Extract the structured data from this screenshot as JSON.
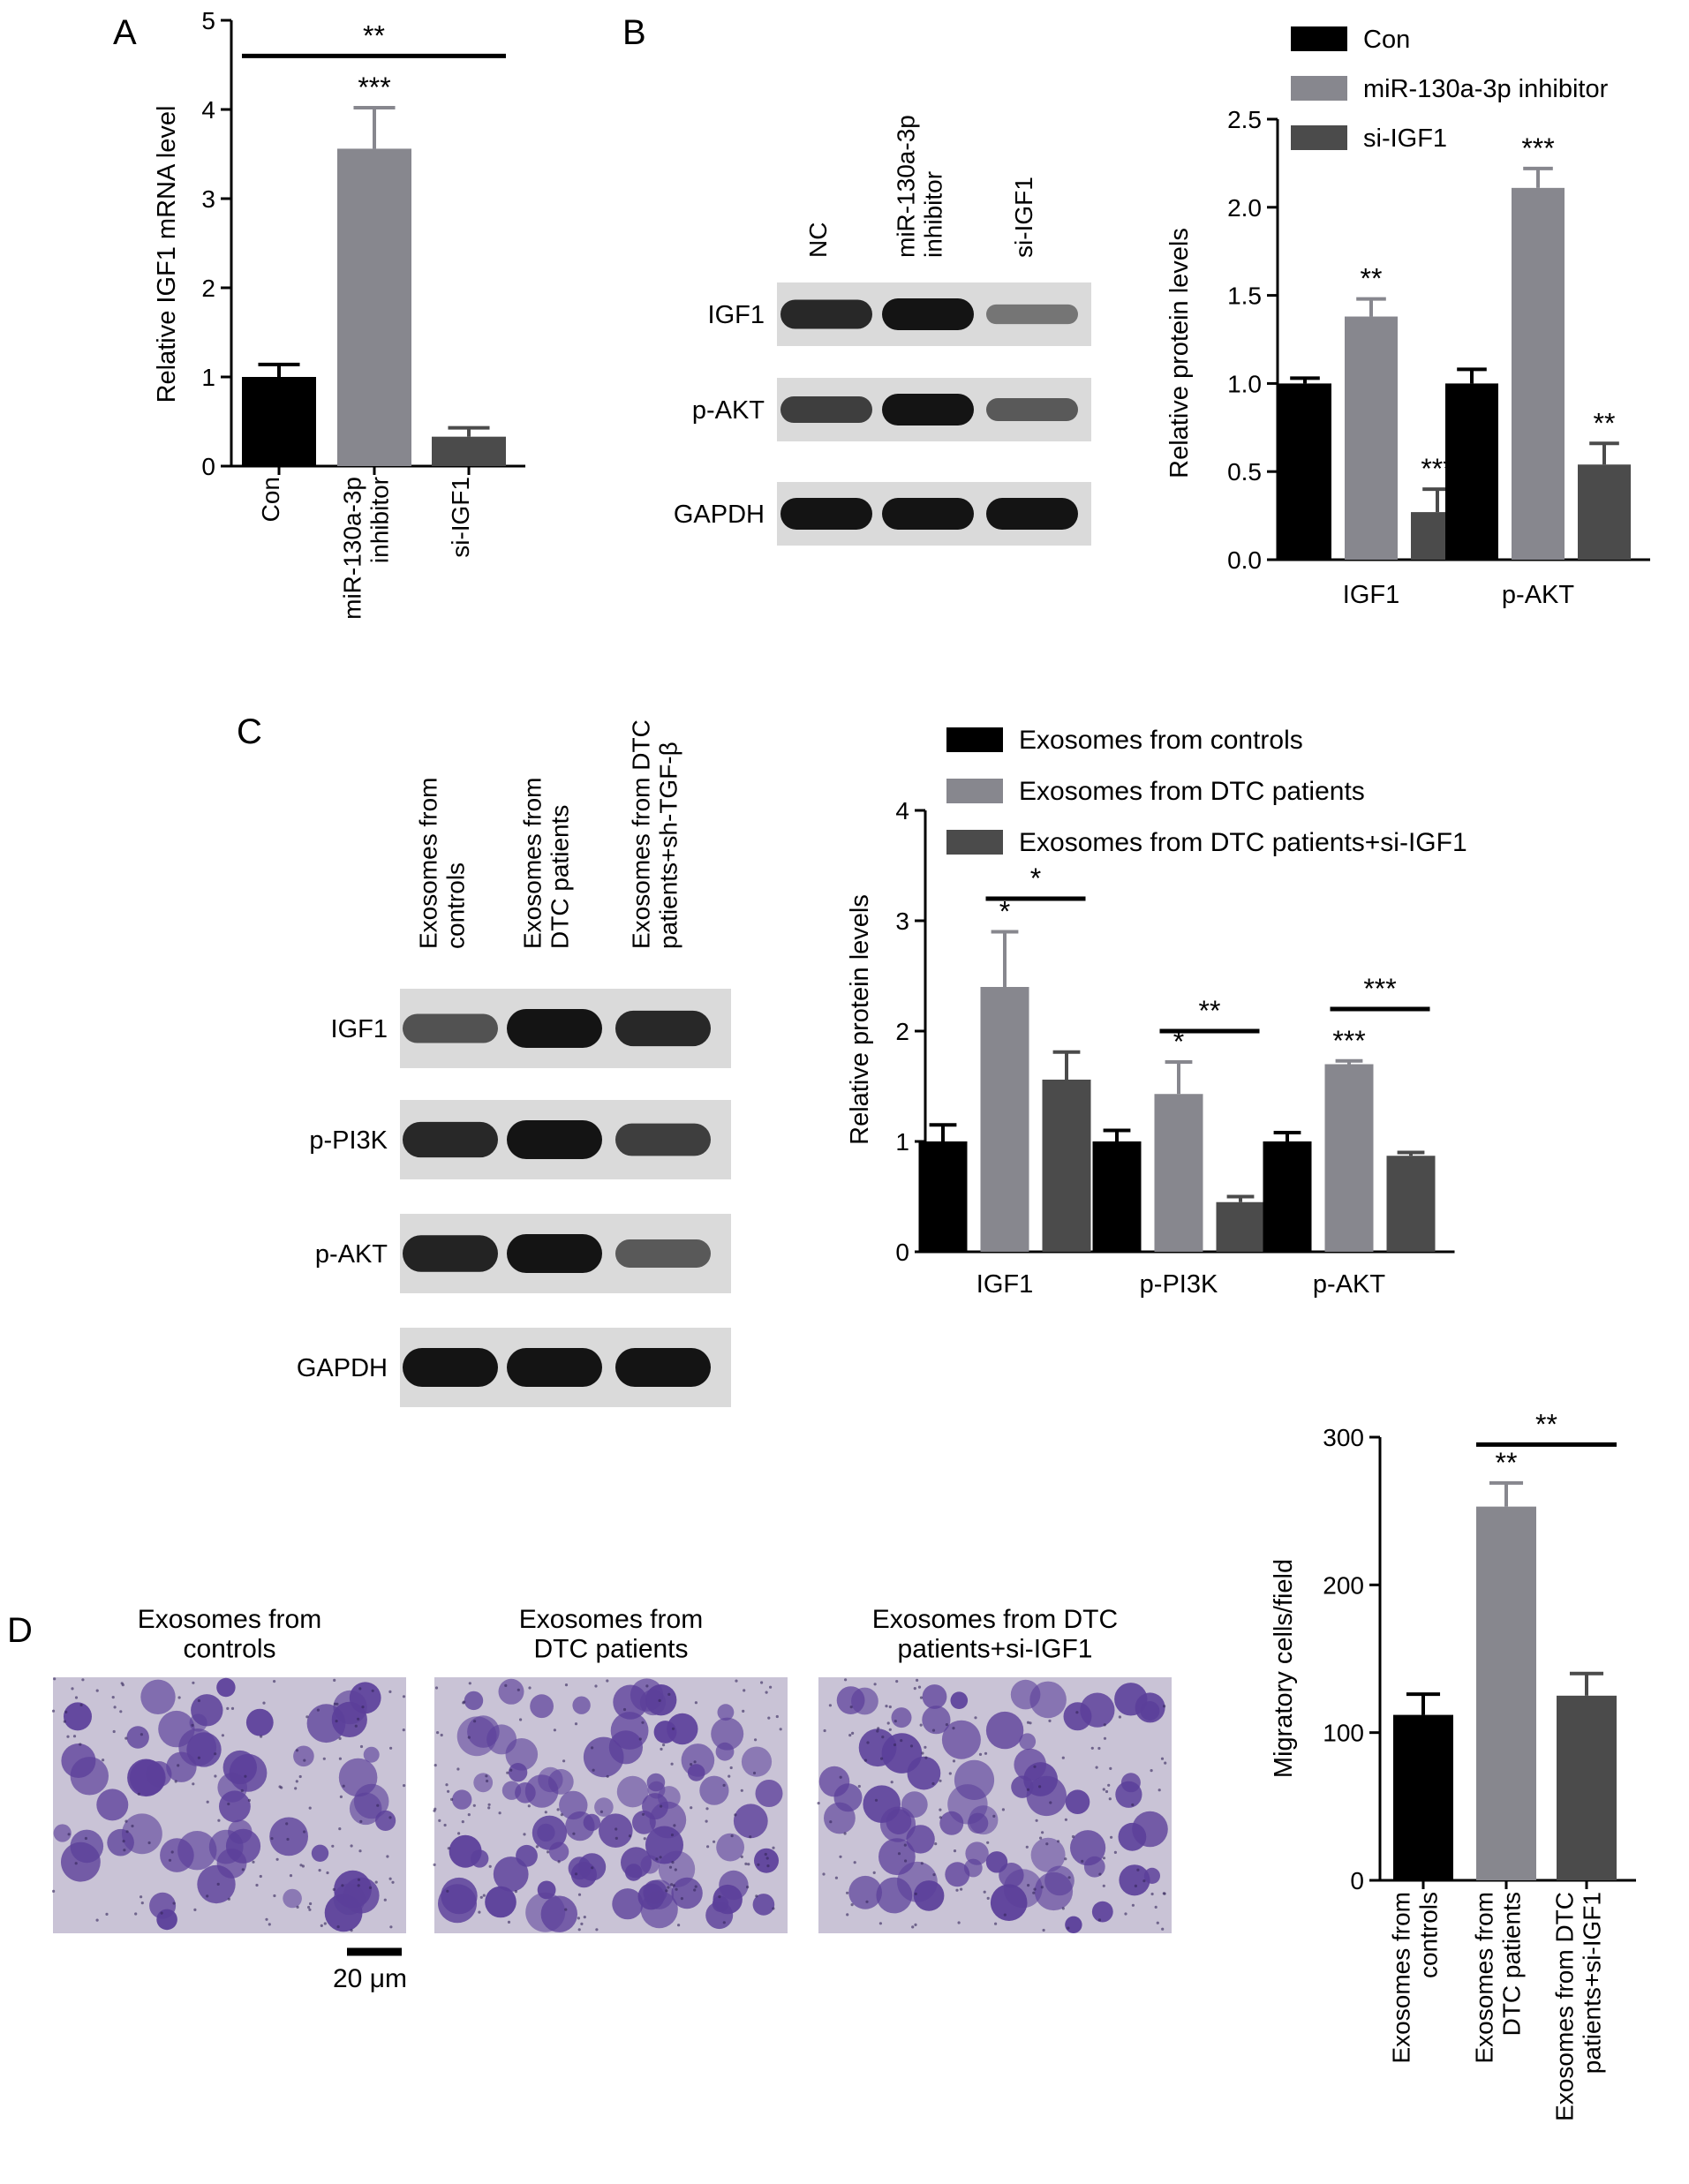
{
  "panel_labels": {
    "a": "A",
    "b": "B",
    "c": "C",
    "d": "D"
  },
  "colors": {
    "black": "#000000",
    "light_gray": "#87878e",
    "dark_gray": "#4b4b4b",
    "blot_bg": "#dadada",
    "band": "#141414",
    "stain": "#5b3f9a",
    "stain_bg": "#c9c3d6"
  },
  "blots": {
    "b": {
      "lanes": [
        "NC",
        "miR-130a-3p\ninhibitor",
        "si-IGF1"
      ],
      "rows": [
        {
          "label": "IGF1",
          "intensity": [
            0.85,
            1.0,
            0.3
          ]
        },
        {
          "label": "p-AKT",
          "intensity": [
            0.7,
            1.0,
            0.5
          ]
        },
        {
          "label": "GAPDH",
          "intensity": [
            1.0,
            1.0,
            1.0
          ]
        }
      ]
    },
    "c": {
      "lanes": [
        "Exosomes from\ncontrols",
        "Exosomes from\nDTC patients",
        "Exosomes from DTC\npatients+sh-TGF-β"
      ],
      "rows": [
        {
          "label": "IGF1",
          "intensity": [
            0.55,
            1.0,
            0.85
          ]
        },
        {
          "label": "p-PI3K",
          "intensity": [
            0.85,
            1.0,
            0.7
          ]
        },
        {
          "label": "p-AKT",
          "intensity": [
            0.9,
            1.0,
            0.5
          ]
        },
        {
          "label": "GAPDH",
          "intensity": [
            1.0,
            1.0,
            1.0
          ]
        }
      ]
    }
  },
  "micrographs": {
    "titles": [
      "Exosomes from\ncontrols",
      "Exosomes from\nDTC patients",
      "Exosomes from DTC\npatients+si-IGF1"
    ],
    "density": [
      0.45,
      0.85,
      0.6
    ],
    "scale_bar": "20 μm"
  },
  "chart_data": [
    {
      "id": "A",
      "type": "bar",
      "ylabel": "Relative IGF1 mRNA level",
      "ylim": [
        0,
        5
      ],
      "yticks": [
        "0",
        "1",
        "2",
        "3",
        "4",
        "5"
      ],
      "categories": [
        "Con",
        "miR-130a-3p\ninhibitor",
        "si-IGF1"
      ],
      "values": [
        1.0,
        3.56,
        0.33
      ],
      "errors": [
        0.14,
        0.46,
        0.1
      ],
      "annotations": [
        "",
        "***",
        ""
      ],
      "brackets": [
        {
          "from": 0,
          "to": 2,
          "label": "**",
          "y": 4.6
        }
      ]
    },
    {
      "id": "B",
      "type": "bar",
      "ylabel": "Relative protein levels",
      "ylim": [
        0,
        2.5
      ],
      "yticks": [
        "0.0",
        "0.5",
        "1.0",
        "1.5",
        "2.0",
        "2.5"
      ],
      "categories": [
        "IGF1",
        "p-AKT"
      ],
      "legend": {
        "position": "top",
        "entries": [
          "Con",
          "miR-130a-3p inhibitor",
          "si-IGF1"
        ]
      },
      "series": [
        {
          "name": "Con",
          "values": [
            1.0,
            1.0
          ],
          "errors": [
            0.03,
            0.08
          ],
          "annotations": [
            "",
            ""
          ]
        },
        {
          "name": "miR-130a-3p inhibitor",
          "values": [
            1.38,
            2.11
          ],
          "errors": [
            0.1,
            0.11
          ],
          "annotations": [
            "**",
            "***"
          ]
        },
        {
          "name": "si-IGF1",
          "values": [
            0.27,
            0.54
          ],
          "errors": [
            0.13,
            0.12
          ],
          "annotations": [
            "***",
            "**"
          ]
        }
      ]
    },
    {
      "id": "C",
      "type": "bar",
      "ylabel": "Relative protein levels",
      "ylim": [
        0,
        4
      ],
      "yticks": [
        "0",
        "1",
        "2",
        "3",
        "4"
      ],
      "categories": [
        "IGF1",
        "p-PI3K",
        "p-AKT"
      ],
      "legend": {
        "position": "top",
        "entries": [
          "Exosomes from controls",
          "Exosomes from DTC patients",
          "Exosomes from DTC patients+si-IGF1"
        ]
      },
      "series": [
        {
          "name": "Exosomes from controls",
          "values": [
            1.0,
            1.0,
            1.0
          ],
          "errors": [
            0.15,
            0.1,
            0.08
          ],
          "annotations": [
            "",
            "",
            ""
          ]
        },
        {
          "name": "Exosomes from DTC patients",
          "values": [
            2.4,
            1.43,
            1.7
          ],
          "errors": [
            0.5,
            0.29,
            0.03
          ],
          "annotations": [
            "*",
            "*",
            "***"
          ]
        },
        {
          "name": "Exosomes from DTC patients+si-IGF1",
          "values": [
            1.56,
            0.45,
            0.87
          ],
          "errors": [
            0.25,
            0.05,
            0.03
          ],
          "annotations": [
            "",
            "",
            ""
          ]
        }
      ],
      "brackets": [
        {
          "category": 0,
          "from": 1,
          "to": 2,
          "label": "*",
          "y": 3.2
        },
        {
          "category": 1,
          "from": 1,
          "to": 2,
          "label": "**",
          "y": 2.0
        },
        {
          "category": 2,
          "from": 1,
          "to": 2,
          "label": "***",
          "y": 2.2
        }
      ]
    },
    {
      "id": "D",
      "type": "bar",
      "ylabel": "Migratory cells/field",
      "ylim": [
        0,
        300
      ],
      "yticks": [
        "0",
        "100",
        "200",
        "300"
      ],
      "categories": [
        "Exosomes from\ncontrols",
        "Exosomes from\nDTC patients",
        "Exosomes from DTC\npatients+si-IGF1"
      ],
      "values": [
        112,
        253,
        125
      ],
      "errors": [
        14,
        16,
        15
      ],
      "annotations": [
        "",
        "**",
        ""
      ],
      "brackets": [
        {
          "from": 1,
          "to": 2,
          "label": "**",
          "y": 295
        }
      ]
    }
  ]
}
